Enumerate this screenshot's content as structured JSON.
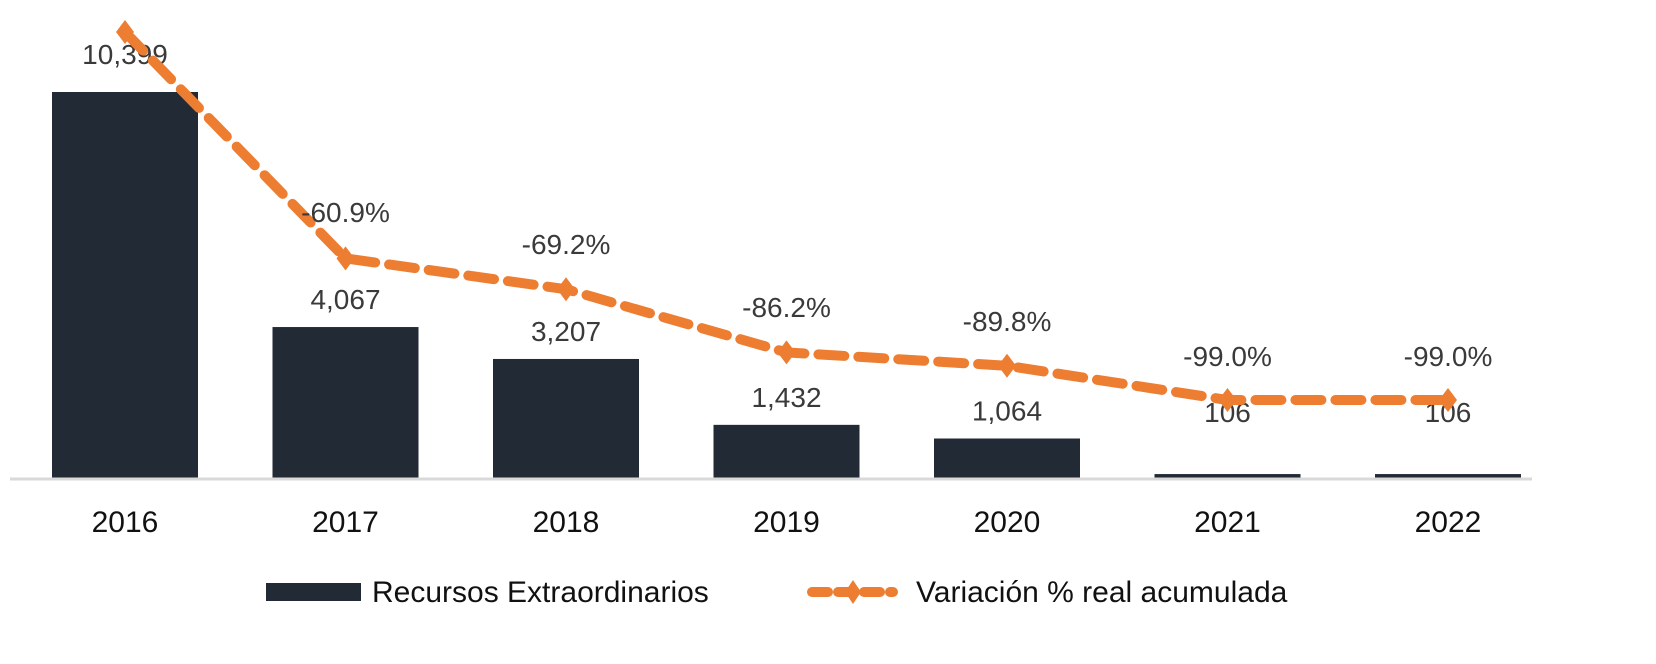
{
  "chart_data": {
    "type": "bar",
    "title": "",
    "xlabel": "",
    "ylabel": "",
    "categories": [
      "2016",
      "2017",
      "2018",
      "2019",
      "2020",
      "2021",
      "2022"
    ],
    "series": [
      {
        "name": "Recursos Extraordinarios",
        "type": "bar",
        "color": "#222a35",
        "values": [
          10399,
          4067,
          3207,
          1432,
          1064,
          106,
          106
        ],
        "labels": [
          "10,399",
          "4,067",
          "3,207",
          "1,432",
          "1,064",
          "106",
          "106"
        ]
      },
      {
        "name": "Variación % real acumulada",
        "type": "line",
        "style": "dashed",
        "marker": "diamond-plus",
        "color": "#ed7d31",
        "values": [
          0.0,
          -60.9,
          -69.2,
          -86.2,
          -89.8,
          -99.0,
          -99.0
        ],
        "labels": [
          "",
          "-60.9%",
          "-69.2%",
          "-86.2%",
          "-89.8%",
          "-99.0%",
          "-99.0%"
        ]
      }
    ],
    "bar_ylim": [
      0,
      10399
    ],
    "line_ylim": [
      -99.0,
      0.0
    ],
    "grid": false,
    "axis_line_color": "#d9d9d9",
    "legend": "bottom"
  }
}
